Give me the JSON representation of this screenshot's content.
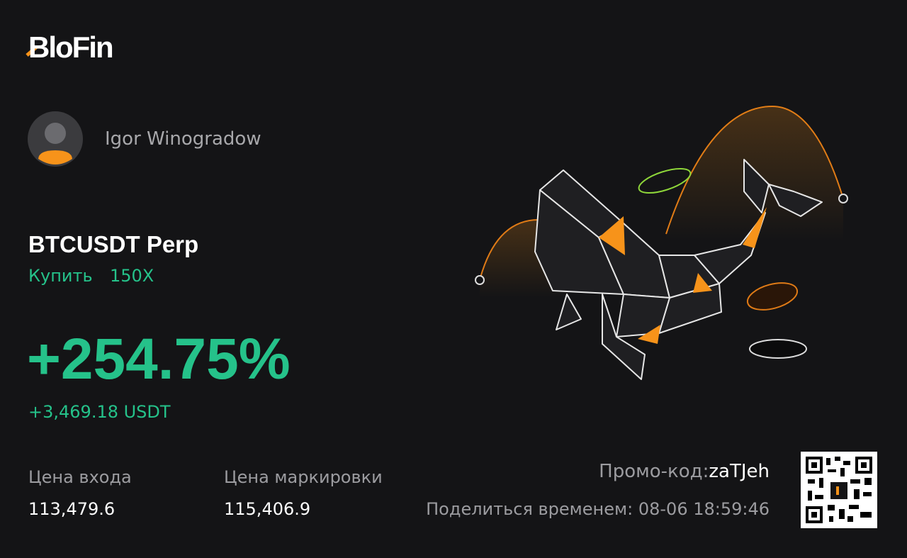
{
  "brand": "BloFin",
  "user": {
    "name": "Igor Winogradow"
  },
  "position": {
    "pair": "BTCUSDT Perp",
    "side": "Купить",
    "leverage": "150X",
    "pnl_percent": "+254.75%",
    "pnl_amount": "+3,469.18 USDT"
  },
  "prices": {
    "entry": {
      "label": "Цена входа",
      "value": "113,479.6"
    },
    "mark": {
      "label": "Цена маркировки",
      "value": "115,406.9"
    }
  },
  "footer": {
    "promo_label": "Промо-код:",
    "promo_code": "zaTJeh",
    "share_label": "Поделиться временем:",
    "share_time": "08-06 18:59:46"
  }
}
